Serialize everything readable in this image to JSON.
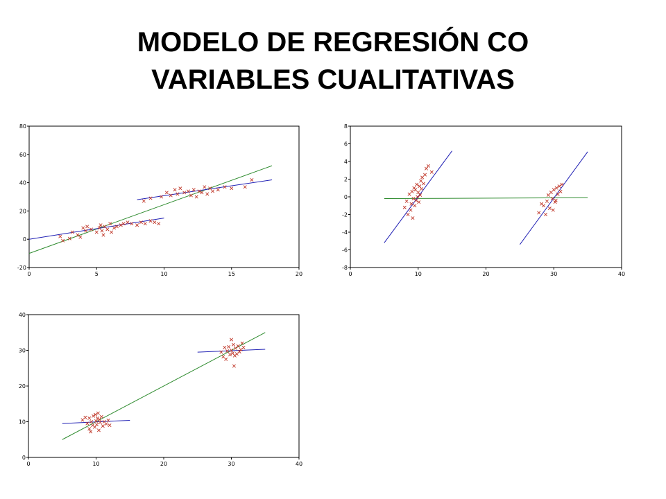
{
  "slide": {
    "title_line1": "MODELO DE REGRESIÓN CO",
    "title_line2": "VARIABLES CUALITATIVAS"
  },
  "colors": {
    "points": "#c0392b",
    "group_lines": "#1f1fb4",
    "pooled_line": "#2e8b2e",
    "frame": "#000000"
  },
  "chart_data": [
    {
      "type": "scatter",
      "title": "",
      "xlabel": "",
      "ylabel": "",
      "xlim": [
        0,
        20
      ],
      "ylim": [
        -20,
        80
      ],
      "xticks": [
        "0",
        "5",
        "10",
        "15",
        "20"
      ],
      "yticks": [
        "-20",
        "0",
        "20",
        "40",
        "60",
        "80"
      ],
      "points": [
        [
          2.3,
          2
        ],
        [
          2.5,
          -1
        ],
        [
          3.0,
          0.5
        ],
        [
          3.2,
          5
        ],
        [
          3.6,
          3
        ],
        [
          3.8,
          1.5
        ],
        [
          4.0,
          8
        ],
        [
          4.2,
          6
        ],
        [
          4.3,
          9
        ],
        [
          4.6,
          7
        ],
        [
          5.0,
          5
        ],
        [
          5.2,
          8
        ],
        [
          5.3,
          10
        ],
        [
          5.4,
          6
        ],
        [
          5.5,
          3
        ],
        [
          5.6,
          9
        ],
        [
          5.8,
          7
        ],
        [
          6.0,
          11
        ],
        [
          6.1,
          5
        ],
        [
          6.3,
          8
        ],
        [
          6.5,
          9
        ],
        [
          6.8,
          10
        ],
        [
          7.0,
          11
        ],
        [
          7.3,
          12
        ],
        [
          7.6,
          11
        ],
        [
          8.0,
          10
        ],
        [
          8.3,
          12
        ],
        [
          8.6,
          11
        ],
        [
          9.0,
          13
        ],
        [
          9.3,
          12
        ],
        [
          9.6,
          11
        ],
        [
          8.5,
          27
        ],
        [
          9.0,
          29
        ],
        [
          9.8,
          30
        ],
        [
          10.2,
          33
        ],
        [
          10.5,
          31
        ],
        [
          10.8,
          35
        ],
        [
          11.0,
          32
        ],
        [
          11.2,
          36
        ],
        [
          11.5,
          33
        ],
        [
          11.8,
          34
        ],
        [
          12.0,
          31
        ],
        [
          12.2,
          35
        ],
        [
          12.4,
          30
        ],
        [
          12.6,
          34
        ],
        [
          12.8,
          33
        ],
        [
          13.0,
          37
        ],
        [
          13.2,
          32
        ],
        [
          13.4,
          36
        ],
        [
          13.6,
          34
        ],
        [
          14.0,
          35
        ],
        [
          14.5,
          37
        ],
        [
          15.0,
          36
        ],
        [
          16.0,
          37
        ],
        [
          16.5,
          42
        ]
      ],
      "series": [
        {
          "kind": "pooled",
          "x": [
            0,
            18
          ],
          "y": [
            -10,
            52
          ]
        },
        {
          "kind": "group",
          "x": [
            0,
            10
          ],
          "y": [
            0,
            15
          ]
        },
        {
          "kind": "group",
          "x": [
            8,
            18
          ],
          "y": [
            28,
            42
          ]
        }
      ]
    },
    {
      "type": "scatter",
      "title": "",
      "xlabel": "",
      "ylabel": "",
      "xlim": [
        0,
        40
      ],
      "ylim": [
        -8,
        8
      ],
      "xticks": [
        "0",
        "10",
        "20",
        "30",
        "40"
      ],
      "yticks": [
        "-8",
        "-6",
        "-4",
        "-2",
        "0",
        "2",
        "4",
        "6",
        "8"
      ],
      "points": [
        [
          8.0,
          -1.2
        ],
        [
          8.3,
          -0.5
        ],
        [
          8.5,
          -2.0
        ],
        [
          8.7,
          0.3
        ],
        [
          8.9,
          -1.5
        ],
        [
          9.0,
          -0.8
        ],
        [
          9.1,
          0.6
        ],
        [
          9.2,
          -2.4
        ],
        [
          9.3,
          -0.2
        ],
        [
          9.4,
          1.0
        ],
        [
          9.5,
          -1.0
        ],
        [
          9.6,
          0.8
        ],
        [
          9.7,
          -0.4
        ],
        [
          9.8,
          1.4
        ],
        [
          9.9,
          0.0
        ],
        [
          10.0,
          0.5
        ],
        [
          10.1,
          -0.6
        ],
        [
          10.2,
          1.2
        ],
        [
          10.3,
          0.2
        ],
        [
          10.4,
          1.8
        ],
        [
          10.5,
          0.9
        ],
        [
          10.6,
          2.2
        ],
        [
          10.8,
          1.5
        ],
        [
          11.0,
          2.5
        ],
        [
          11.2,
          3.2
        ],
        [
          11.5,
          3.5
        ],
        [
          12.0,
          2.8
        ],
        [
          27.8,
          -1.8
        ],
        [
          28.2,
          -0.8
        ],
        [
          28.5,
          -1.0
        ],
        [
          28.8,
          -2.0
        ],
        [
          29.0,
          -0.5
        ],
        [
          29.2,
          0.2
        ],
        [
          29.4,
          -1.3
        ],
        [
          29.6,
          0.5
        ],
        [
          29.8,
          -0.2
        ],
        [
          30.0,
          0.8
        ],
        [
          30.2,
          -0.6
        ],
        [
          30.4,
          1.0
        ],
        [
          30.6,
          0.3
        ],
        [
          30.8,
          1.2
        ],
        [
          31.0,
          0.6
        ],
        [
          31.2,
          1.4
        ],
        [
          30.3,
          -0.4
        ],
        [
          29.9,
          -1.5
        ]
      ],
      "series": [
        {
          "kind": "pooled",
          "x": [
            5,
            35
          ],
          "y": [
            -0.2,
            -0.1
          ]
        },
        {
          "kind": "group",
          "x": [
            5,
            15
          ],
          "y": [
            -5.2,
            5.2
          ]
        },
        {
          "kind": "group",
          "x": [
            25,
            35
          ],
          "y": [
            -5.4,
            5.1
          ]
        }
      ]
    },
    {
      "type": "scatter",
      "title": "",
      "xlabel": "",
      "ylabel": "",
      "xlim": [
        0,
        40
      ],
      "ylim": [
        0,
        40
      ],
      "xticks": [
        "0",
        "10",
        "20",
        "30",
        "40"
      ],
      "yticks": [
        "0",
        "10",
        "20",
        "30",
        "40"
      ],
      "points": [
        [
          8.0,
          10.5
        ],
        [
          8.4,
          11.2
        ],
        [
          8.7,
          9.5
        ],
        [
          9.0,
          11.0
        ],
        [
          9.0,
          8.0
        ],
        [
          9.2,
          7.2
        ],
        [
          9.3,
          10.0
        ],
        [
          9.5,
          9.0
        ],
        [
          9.6,
          11.6
        ],
        [
          9.8,
          8.5
        ],
        [
          9.9,
          12.0
        ],
        [
          10.0,
          10.2
        ],
        [
          10.1,
          9.2
        ],
        [
          10.2,
          11.0
        ],
        [
          10.3,
          12.4
        ],
        [
          10.4,
          7.6
        ],
        [
          10.5,
          10.6
        ],
        [
          10.6,
          9.8
        ],
        [
          10.8,
          11.4
        ],
        [
          11.0,
          8.8
        ],
        [
          11.2,
          10.0
        ],
        [
          11.5,
          9.4
        ],
        [
          11.8,
          10.4
        ],
        [
          12.0,
          9.0
        ],
        [
          28.5,
          29.5
        ],
        [
          28.8,
          28.2
        ],
        [
          29.0,
          30.8
        ],
        [
          29.2,
          27.5
        ],
        [
          29.4,
          29.8
        ],
        [
          29.6,
          31.0
        ],
        [
          29.8,
          28.8
        ],
        [
          30.0,
          30.0
        ],
        [
          30.0,
          33.0
        ],
        [
          30.2,
          29.2
        ],
        [
          30.3,
          31.6
        ],
        [
          30.5,
          28.5
        ],
        [
          30.6,
          30.6
        ],
        [
          30.8,
          29.0
        ],
        [
          31.0,
          31.2
        ],
        [
          31.2,
          29.6
        ],
        [
          31.4,
          30.2
        ],
        [
          31.6,
          32.0
        ],
        [
          31.8,
          30.8
        ],
        [
          30.4,
          25.6
        ]
      ],
      "series": [
        {
          "kind": "pooled",
          "x": [
            5,
            35
          ],
          "y": [
            5,
            35
          ]
        },
        {
          "kind": "group",
          "x": [
            5,
            15
          ],
          "y": [
            9.5,
            10.4
          ]
        },
        {
          "kind": "group",
          "x": [
            25,
            35
          ],
          "y": [
            29.5,
            30.3
          ]
        }
      ]
    }
  ]
}
